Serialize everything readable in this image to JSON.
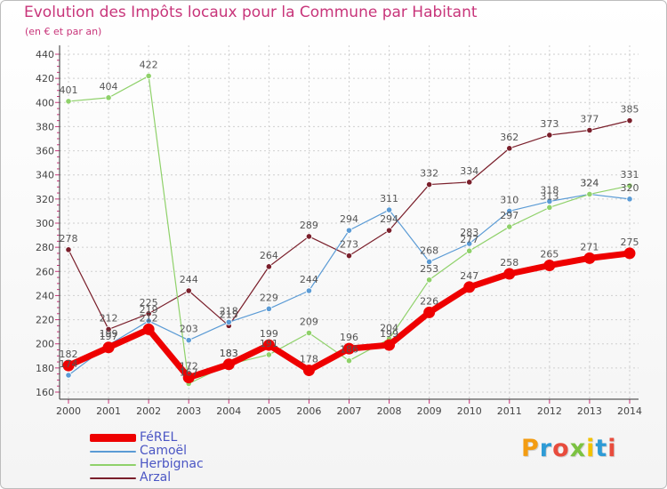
{
  "title": "Evolution des Impôts locaux pour la Commune par Habitant",
  "subtitle": "(en € et par an)",
  "logo": {
    "text": "Proxiti",
    "colors": [
      "#f39c12",
      "#2e9bd6",
      "#e84c3d",
      "#7cc242",
      "#f2c200",
      "#2e9bd6",
      "#e84c3d"
    ]
  },
  "chart_data": {
    "type": "line",
    "title": "Evolution des Impôts locaux pour la Commune par Habitant",
    "subtitle": "(en € et par an)",
    "xlabel": "",
    "ylabel": "",
    "ylim": [
      160,
      440
    ],
    "yticks": [
      160,
      180,
      200,
      220,
      240,
      260,
      280,
      300,
      320,
      340,
      360,
      380,
      400,
      420,
      440
    ],
    "x": [
      "2000",
      "2001",
      "2002",
      "2003",
      "2004",
      "2005",
      "2006",
      "2007",
      "2008",
      "2009",
      "2010",
      "2011",
      "2012",
      "2013",
      "2014"
    ],
    "legend_position": "bottom-left",
    "series": [
      {
        "name": "Arzal",
        "color": "#7a1f2b",
        "values": [
          278,
          212,
          225,
          244,
          215,
          264,
          289,
          273,
          294,
          332,
          334,
          362,
          373,
          377,
          385
        ]
      },
      {
        "name": "Camoël",
        "color": "#5b9bd5",
        "values": [
          174,
          199,
          219,
          203,
          218,
          229,
          244,
          294,
          311,
          268,
          283,
          310,
          318,
          324,
          320
        ]
      },
      {
        "name": "Herbignac",
        "color": "#8fd16a",
        "values": [
          401,
          404,
          422,
          167,
          183,
          191,
          209,
          186,
          204,
          253,
          277,
          297,
          313,
          324,
          331
        ]
      },
      {
        "name": "FéREL",
        "color": "#ee0000",
        "values": [
          182,
          197,
          212,
          172,
          183,
          199,
          178,
          196,
          199,
          226,
          247,
          258,
          265,
          271,
          275
        ]
      }
    ],
    "labels": {
      "Arzal": [
        "278",
        "212",
        "225",
        "244",
        "215",
        "264",
        "289",
        "273",
        "294",
        "332",
        "334",
        "362",
        "373",
        "377",
        "385"
      ],
      "Camoël": [
        "174",
        "199",
        "219",
        "203",
        "218",
        "229",
        "244",
        "294",
        "311",
        "268",
        "283",
        "310",
        "318",
        "324",
        "320"
      ],
      "Herbignac": [
        "401",
        "404",
        "422",
        "167",
        "183",
        "191",
        "209",
        "186",
        "204",
        "253",
        "277",
        "297",
        "313",
        "324",
        "331"
      ],
      "FéREL": [
        "182",
        "197",
        "212",
        "172",
        "183",
        "199",
        "178",
        "196",
        "199",
        "226",
        "247",
        "258",
        "265",
        "271",
        "275"
      ]
    }
  },
  "legend": [
    {
      "label": "FéREL",
      "color": "#ee0000"
    },
    {
      "label": "Camoël",
      "color": "#5b9bd5"
    },
    {
      "label": "Herbignac",
      "color": "#8fd16a"
    },
    {
      "label": "Arzal",
      "color": "#7a1f2b"
    }
  ]
}
